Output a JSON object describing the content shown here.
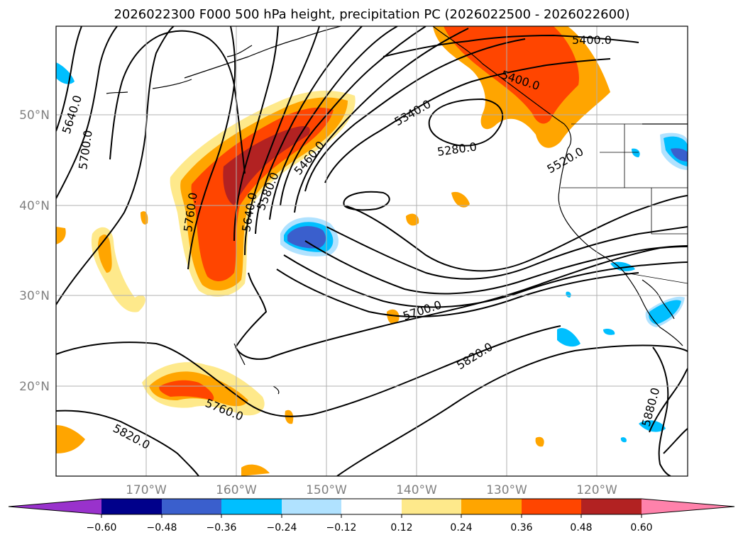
{
  "title": "2026022300 F000 500 hPa height, precipitation PC (2026022500 - 2026022600)",
  "lat_labels": [
    "50°N",
    "40°N",
    "30°N",
    "20°N"
  ],
  "lon_labels": [
    "170°W",
    "160°W",
    "150°W",
    "140°W",
    "130°W",
    "120°W"
  ],
  "colorbar": {
    "colors": [
      "#9932cc",
      "#00008b",
      "#3a5fcd",
      "#00bfff",
      "#b0e2ff",
      "#ffffff",
      "#fee98b",
      "#ffa500",
      "#ff4500",
      "#b22222",
      "#ff82ab"
    ],
    "tick_labels": [
      "−0.60",
      "−0.48",
      "−0.36",
      "−0.24",
      "−0.12",
      "0.12",
      "0.24",
      "0.36",
      "0.48",
      "0.60"
    ]
  },
  "contour_labels": {
    "c5400": "5400.0",
    "c5400b": "5400.0",
    "c5340": "5340.0",
    "c5280": "5280.0",
    "c5460": "5460.0",
    "c5520": "5520.0",
    "c5580": "5580.0",
    "c5640a": "5640.0",
    "c5640b": "5640.0",
    "c5700a": "5700.0",
    "c5700b": "5700.0",
    "c5760a": "5760.0",
    "c5760b": "5760.0",
    "c5820a": "5820.0",
    "c5820b": "5820.0",
    "c5880": "5880.0"
  }
}
